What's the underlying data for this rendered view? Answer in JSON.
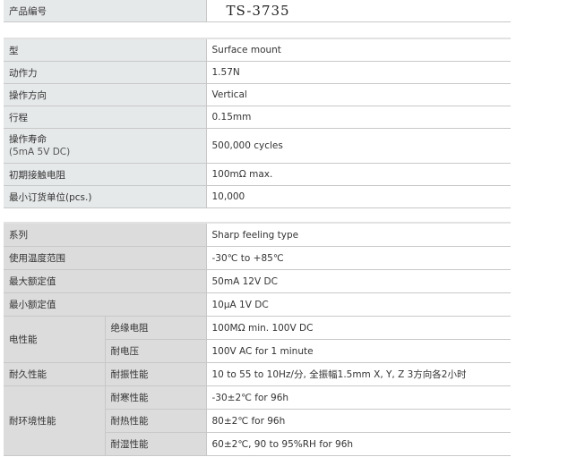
{
  "header": {
    "label": "产品编号",
    "value": "TS-3735"
  },
  "specs": [
    {
      "label": "型",
      "value": "Surface mount"
    },
    {
      "label": "动作力",
      "value": "1.57N"
    },
    {
      "label": "操作方向",
      "value": "Vertical"
    },
    {
      "label": "行程",
      "value": "0.15mm"
    },
    {
      "label": "操作寿命",
      "label2": "(5mA 5V DC)",
      "value": "500,000 cycles"
    },
    {
      "label": "初期接触电阻",
      "value": "100mΩ max."
    },
    {
      "label": "最小订货单位(pcs.)",
      "value": "10,000"
    }
  ],
  "ratings": [
    {
      "label": "系列",
      "value": "Sharp feeling type"
    },
    {
      "label": "使用温度范围",
      "value": "-30℃ to +85℃"
    },
    {
      "label": "最大额定值",
      "value": "50mA 12V DC"
    },
    {
      "label": "最小额定值",
      "value": "10μA 1V DC"
    }
  ],
  "groups": {
    "electrical": {
      "label": "电性能",
      "items": [
        {
          "label": "绝缘电阻",
          "value": "100MΩ min. 100V DC"
        },
        {
          "label": "耐电压",
          "value": "100V AC for 1 minute"
        }
      ]
    },
    "durability": {
      "label": "耐久性能",
      "items": [
        {
          "label": "耐振性能",
          "value": "10 to 55 to 10Hz/分, 全振幅1.5mm X, Y, Z 3方向各2小时"
        }
      ]
    },
    "environment": {
      "label": "耐环境性能",
      "items": [
        {
          "label": "耐寒性能",
          "value": "-30±2℃ for 96h"
        },
        {
          "label": "耐热性能",
          "value": "80±2℃ for 96h"
        },
        {
          "label": "耐湿性能",
          "value": "60±2℃, 90 to 95%RH for 96h"
        }
      ]
    }
  }
}
